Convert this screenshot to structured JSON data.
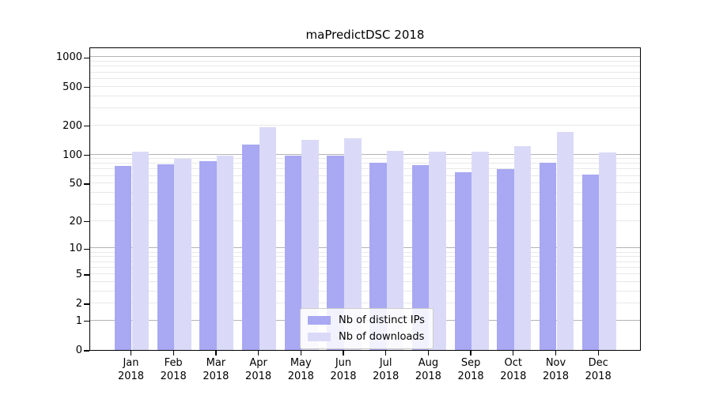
{
  "chart_data": {
    "type": "bar",
    "title": "maPredictDSC 2018",
    "months": [
      "Jan",
      "Feb",
      "Mar",
      "Apr",
      "May",
      "Jun",
      "Jul",
      "Aug",
      "Sep",
      "Oct",
      "Nov",
      "Dec"
    ],
    "year": "2018",
    "categories": [
      "Jan 2018",
      "Feb 2018",
      "Mar 2018",
      "Apr 2018",
      "May 2018",
      "Jun 2018",
      "Jul 2018",
      "Aug 2018",
      "Sep 2018",
      "Oct 2018",
      "Nov 2018",
      "Dec 2018"
    ],
    "series": [
      {
        "name": "Nb of distinct IPs",
        "color": "#a8a8f3",
        "values": [
          76,
          79,
          85,
          127,
          98,
          98,
          82,
          78,
          66,
          71,
          82,
          62
        ]
      },
      {
        "name": "Nb of downloads",
        "color": "#dadaf8",
        "values": [
          107,
          91,
          98,
          191,
          141,
          148,
          108,
          106,
          106,
          122,
          171,
          104
        ]
      }
    ],
    "xlabel": "",
    "ylabel": "",
    "yscale": "symlog",
    "ylim": [
      0,
      1285
    ],
    "y_ticks": [
      0,
      1,
      2,
      5,
      10,
      20,
      50,
      100,
      200,
      500,
      1000
    ],
    "grid": "horizontal major and log-minor gridlines",
    "legend_position": "inside bottom-center"
  }
}
